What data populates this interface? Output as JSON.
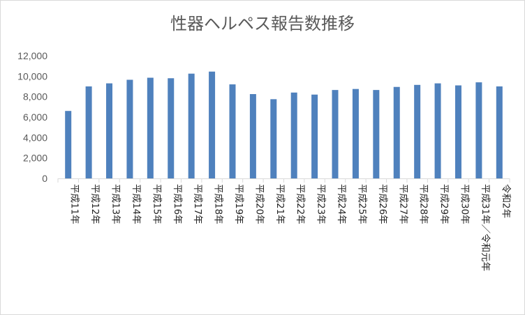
{
  "chart_data": {
    "type": "bar",
    "title": "性器ヘルペス報告数推移",
    "xlabel": "",
    "ylabel": "",
    "ylim": [
      0,
      12000
    ],
    "yticks": [
      0,
      2000,
      4000,
      6000,
      8000,
      10000,
      12000
    ],
    "ytick_labels": [
      "0",
      "2,000",
      "4,000",
      "6,000",
      "8,000",
      "10,000",
      "12,000"
    ],
    "grid": false,
    "legend": "none",
    "bar_color": "#4f81bd",
    "categories": [
      "平成11年",
      "平成12年",
      "平成13年",
      "平成14年",
      "平成15年",
      "平成16年",
      "平成17年",
      "平成18年",
      "平成19年",
      "平成20年",
      "平成21年",
      "平成22年",
      "平成23年",
      "平成24年",
      "平成25年",
      "平成26年",
      "平成27年",
      "平成28年",
      "平成29年",
      "平成30年",
      "平成31年／令和元年",
      "令和2年"
    ],
    "values": [
      6600,
      9000,
      9300,
      9650,
      9850,
      9800,
      10250,
      10450,
      9200,
      8250,
      7750,
      8400,
      8200,
      8650,
      8750,
      8650,
      8950,
      9150,
      9300,
      9100,
      9400,
      9000
    ]
  }
}
